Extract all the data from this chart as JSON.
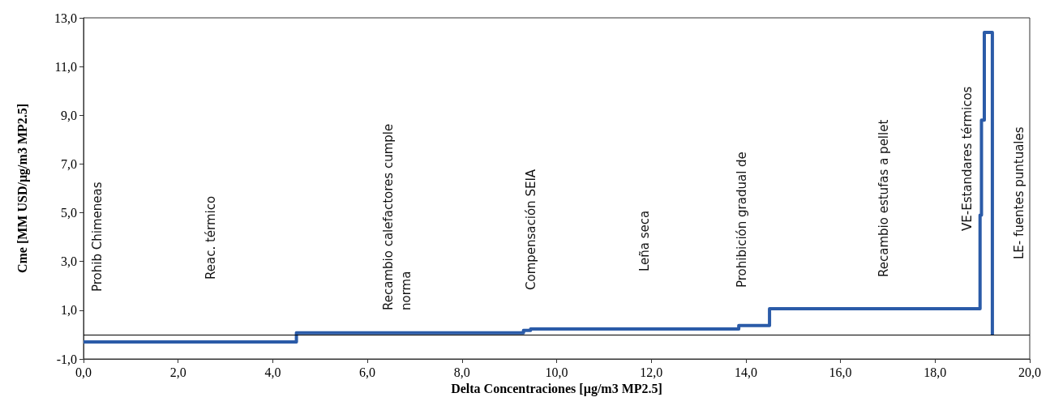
{
  "chart_data": {
    "type": "step",
    "xlabel": "Delta Concentraciones [µg/m3 MP2.5]",
    "ylabel": "Cme [MM USD/µg/m3 MP2.5]",
    "x": [
      0,
      4.5,
      9.3,
      9.45,
      13.85,
      14.5,
      18.95,
      18.98,
      19.04,
      19.21
    ],
    "series": [
      {
        "color": "#2b5ba8",
        "values": [
          -0.3,
          0.07,
          0.17,
          0.23,
          0.37,
          1.06,
          4.9,
          8.8,
          12.4,
          0
        ]
      }
    ],
    "xlim": [
      0,
      20
    ],
    "xticks": [
      {
        "value": 0,
        "label": "0,0"
      },
      {
        "value": 2,
        "label": "2,0"
      },
      {
        "value": 4,
        "label": "4,0"
      },
      {
        "value": 6,
        "label": "6,0"
      },
      {
        "value": 8,
        "label": "8,0"
      },
      {
        "value": 10,
        "label": "10,0"
      },
      {
        "value": 12,
        "label": "12,0"
      },
      {
        "value": 14,
        "label": "14,0"
      },
      {
        "value": 16,
        "label": "16,0"
      },
      {
        "value": 18,
        "label": "18,0"
      },
      {
        "value": 20,
        "label": "20,0"
      }
    ],
    "ylim": [
      -1,
      13
    ],
    "yticks": [
      {
        "value": -1,
        "label": "-1,0"
      },
      {
        "value": 1,
        "label": "1,0"
      },
      {
        "value": 3,
        "label": "3,0"
      },
      {
        "value": 5,
        "label": "5,0"
      },
      {
        "value": 7,
        "label": "7,0"
      },
      {
        "value": 9,
        "label": "9,0"
      },
      {
        "value": 11,
        "label": "11,0"
      },
      {
        "value": 13,
        "label": "13,0"
      }
    ],
    "ref_lines": [
      {
        "axis": "y",
        "value": 0,
        "color": "#000000"
      }
    ],
    "annotations": [
      "Prohib Chimeneas",
      "Reac. térmico",
      "Recambio calefactores cumple\nnorma",
      "Compensación SEIA",
      "Leña seca",
      "Prohibición gradual de",
      "Recambio estufas a pellet",
      "VE-Estandares térmicos",
      "LE- fuentes puntuales"
    ],
    "grid": false,
    "marker": "none",
    "line_style": "solid"
  }
}
